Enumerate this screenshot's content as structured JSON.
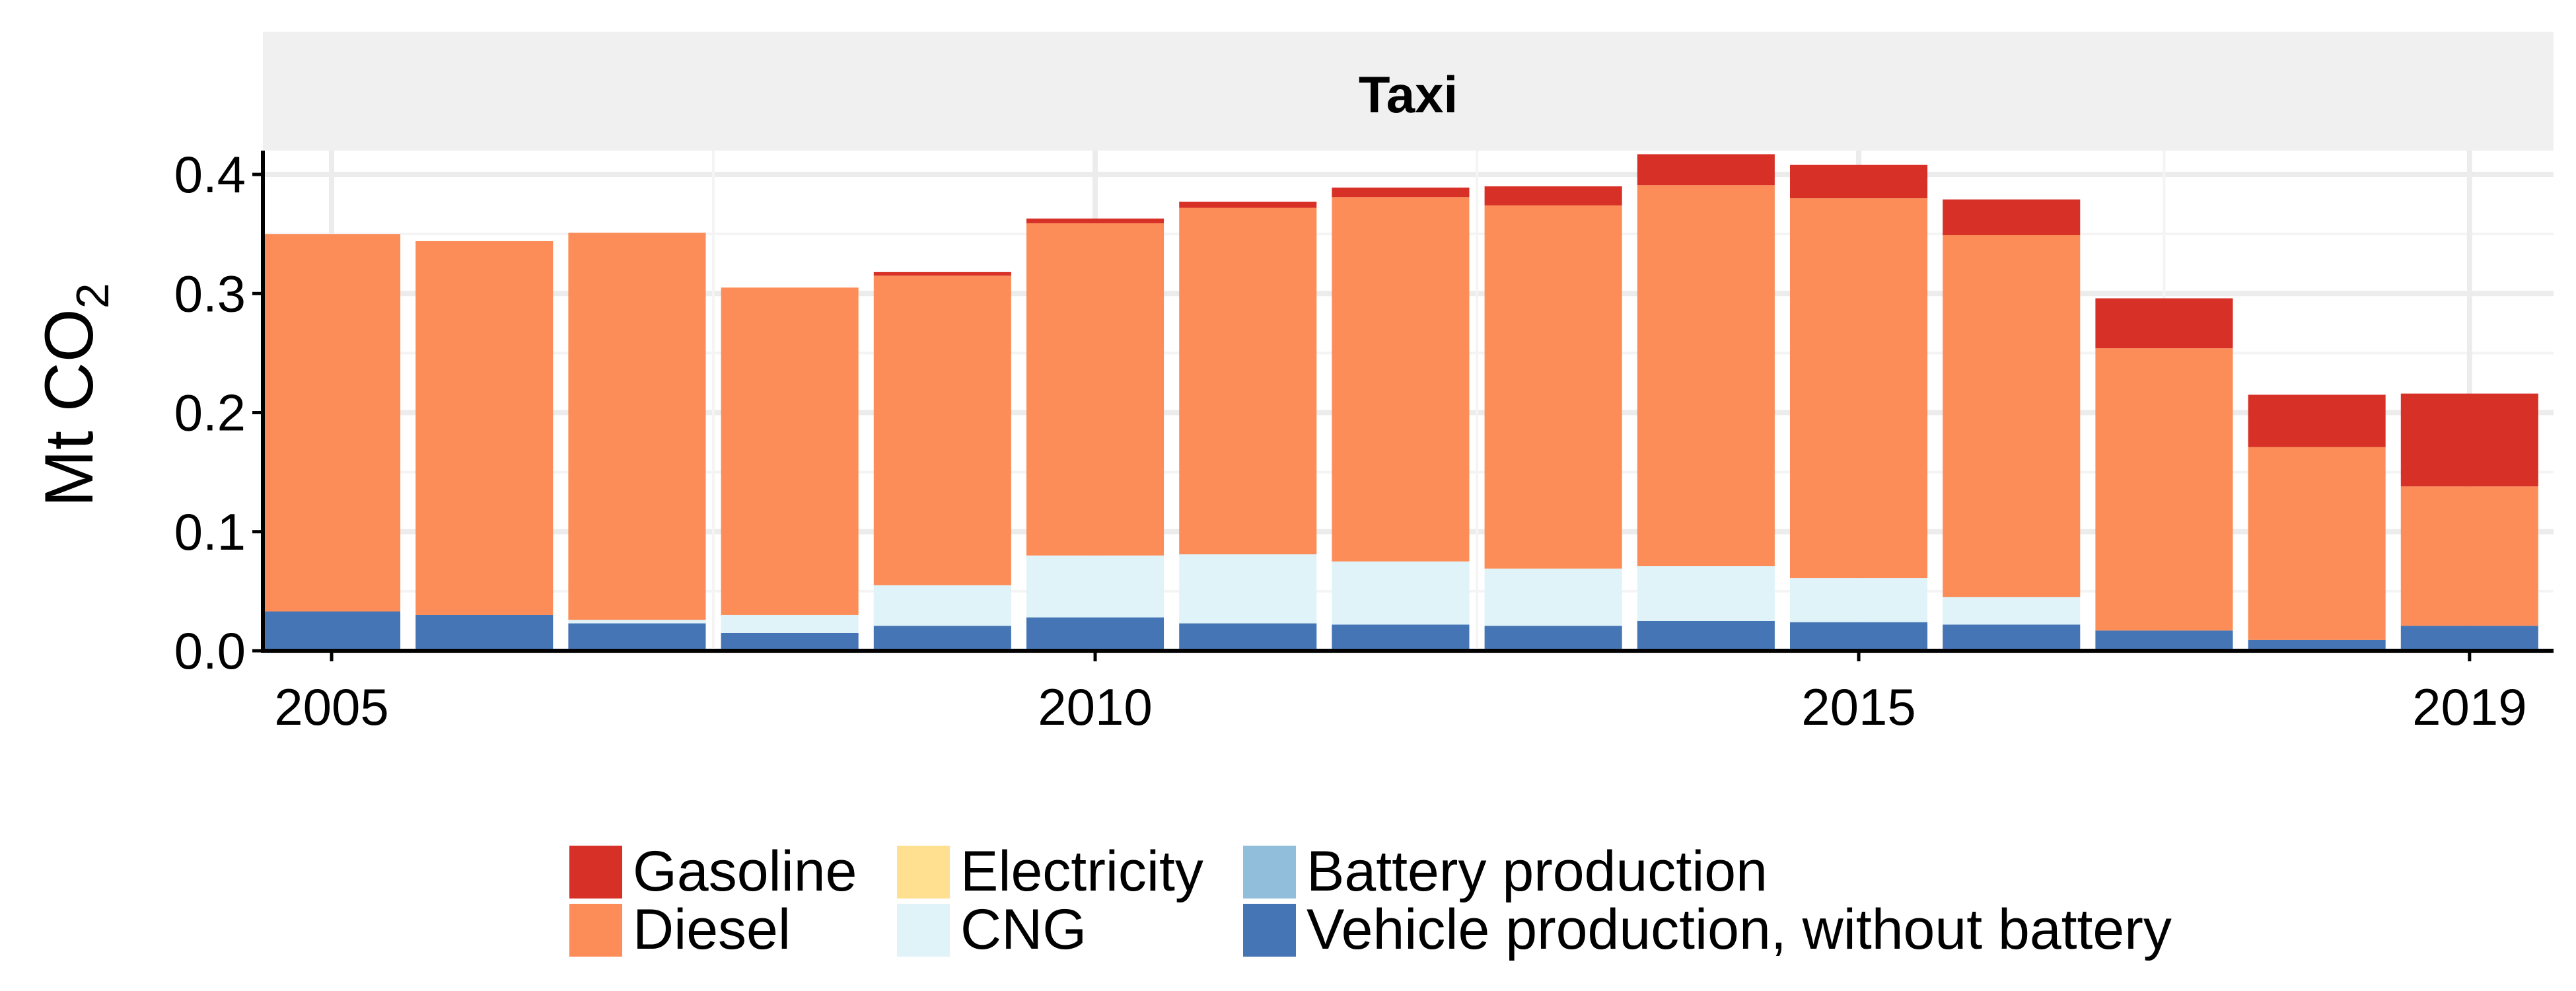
{
  "chart_data": {
    "type": "bar",
    "stacked": true,
    "facet_title": "Taxi",
    "ylabel": "Mt CO",
    "ylabel_subscript": "2",
    "xlabel": "",
    "years": [
      2005,
      2006,
      2007,
      2008,
      2009,
      2010,
      2011,
      2012,
      2013,
      2014,
      2015,
      2016,
      2017,
      2018,
      2019
    ],
    "x_ticks": [
      2005,
      2010,
      2015,
      2019
    ],
    "x_tick_labels": [
      "2005",
      "2010",
      "2015",
      "2019"
    ],
    "y_ticks": [
      0.0,
      0.1,
      0.2,
      0.3,
      0.4
    ],
    "y_tick_labels": [
      "0.0",
      "0.1",
      "0.2",
      "0.3",
      "0.4"
    ],
    "ylim": [
      0,
      0.42
    ],
    "grid": true,
    "legend_position": "bottom",
    "legend_order": [
      "Gasoline",
      "Diesel",
      "Electricity",
      "CNG",
      "Battery production",
      "Vehicle production, without battery"
    ],
    "series": [
      {
        "name": "Vehicle production, without battery",
        "color": "#4575b4",
        "values": [
          0.033,
          0.03,
          0.023,
          0.015,
          0.021,
          0.028,
          0.023,
          0.022,
          0.021,
          0.025,
          0.024,
          0.022,
          0.017,
          0.009,
          0.021
        ]
      },
      {
        "name": "Battery production",
        "color": "#91bfdb",
        "values": [
          0,
          0,
          0,
          0,
          0,
          0,
          0,
          0,
          0,
          0,
          0,
          0,
          0,
          0,
          0
        ]
      },
      {
        "name": "CNG",
        "color": "#e0f3f8",
        "values": [
          0.0,
          0.0,
          0.003,
          0.015,
          0.034,
          0.052,
          0.058,
          0.053,
          0.048,
          0.046,
          0.037,
          0.023,
          0.0,
          0.0,
          0.0
        ]
      },
      {
        "name": "Electricity",
        "color": "#fee090",
        "values": [
          0,
          0,
          0,
          0,
          0,
          0,
          0,
          0,
          0,
          0,
          0,
          0,
          0,
          0,
          0
        ]
      },
      {
        "name": "Diesel",
        "color": "#fc8d59",
        "values": [
          0.317,
          0.314,
          0.325,
          0.275,
          0.26,
          0.279,
          0.291,
          0.306,
          0.305,
          0.32,
          0.319,
          0.304,
          0.237,
          0.162,
          0.117
        ]
      },
      {
        "name": "Gasoline",
        "color": "#d73027",
        "values": [
          0.0,
          0.0,
          0.0,
          0.0,
          0.003,
          0.004,
          0.005,
          0.008,
          0.016,
          0.026,
          0.028,
          0.03,
          0.042,
          0.044,
          0.078
        ]
      }
    ]
  }
}
